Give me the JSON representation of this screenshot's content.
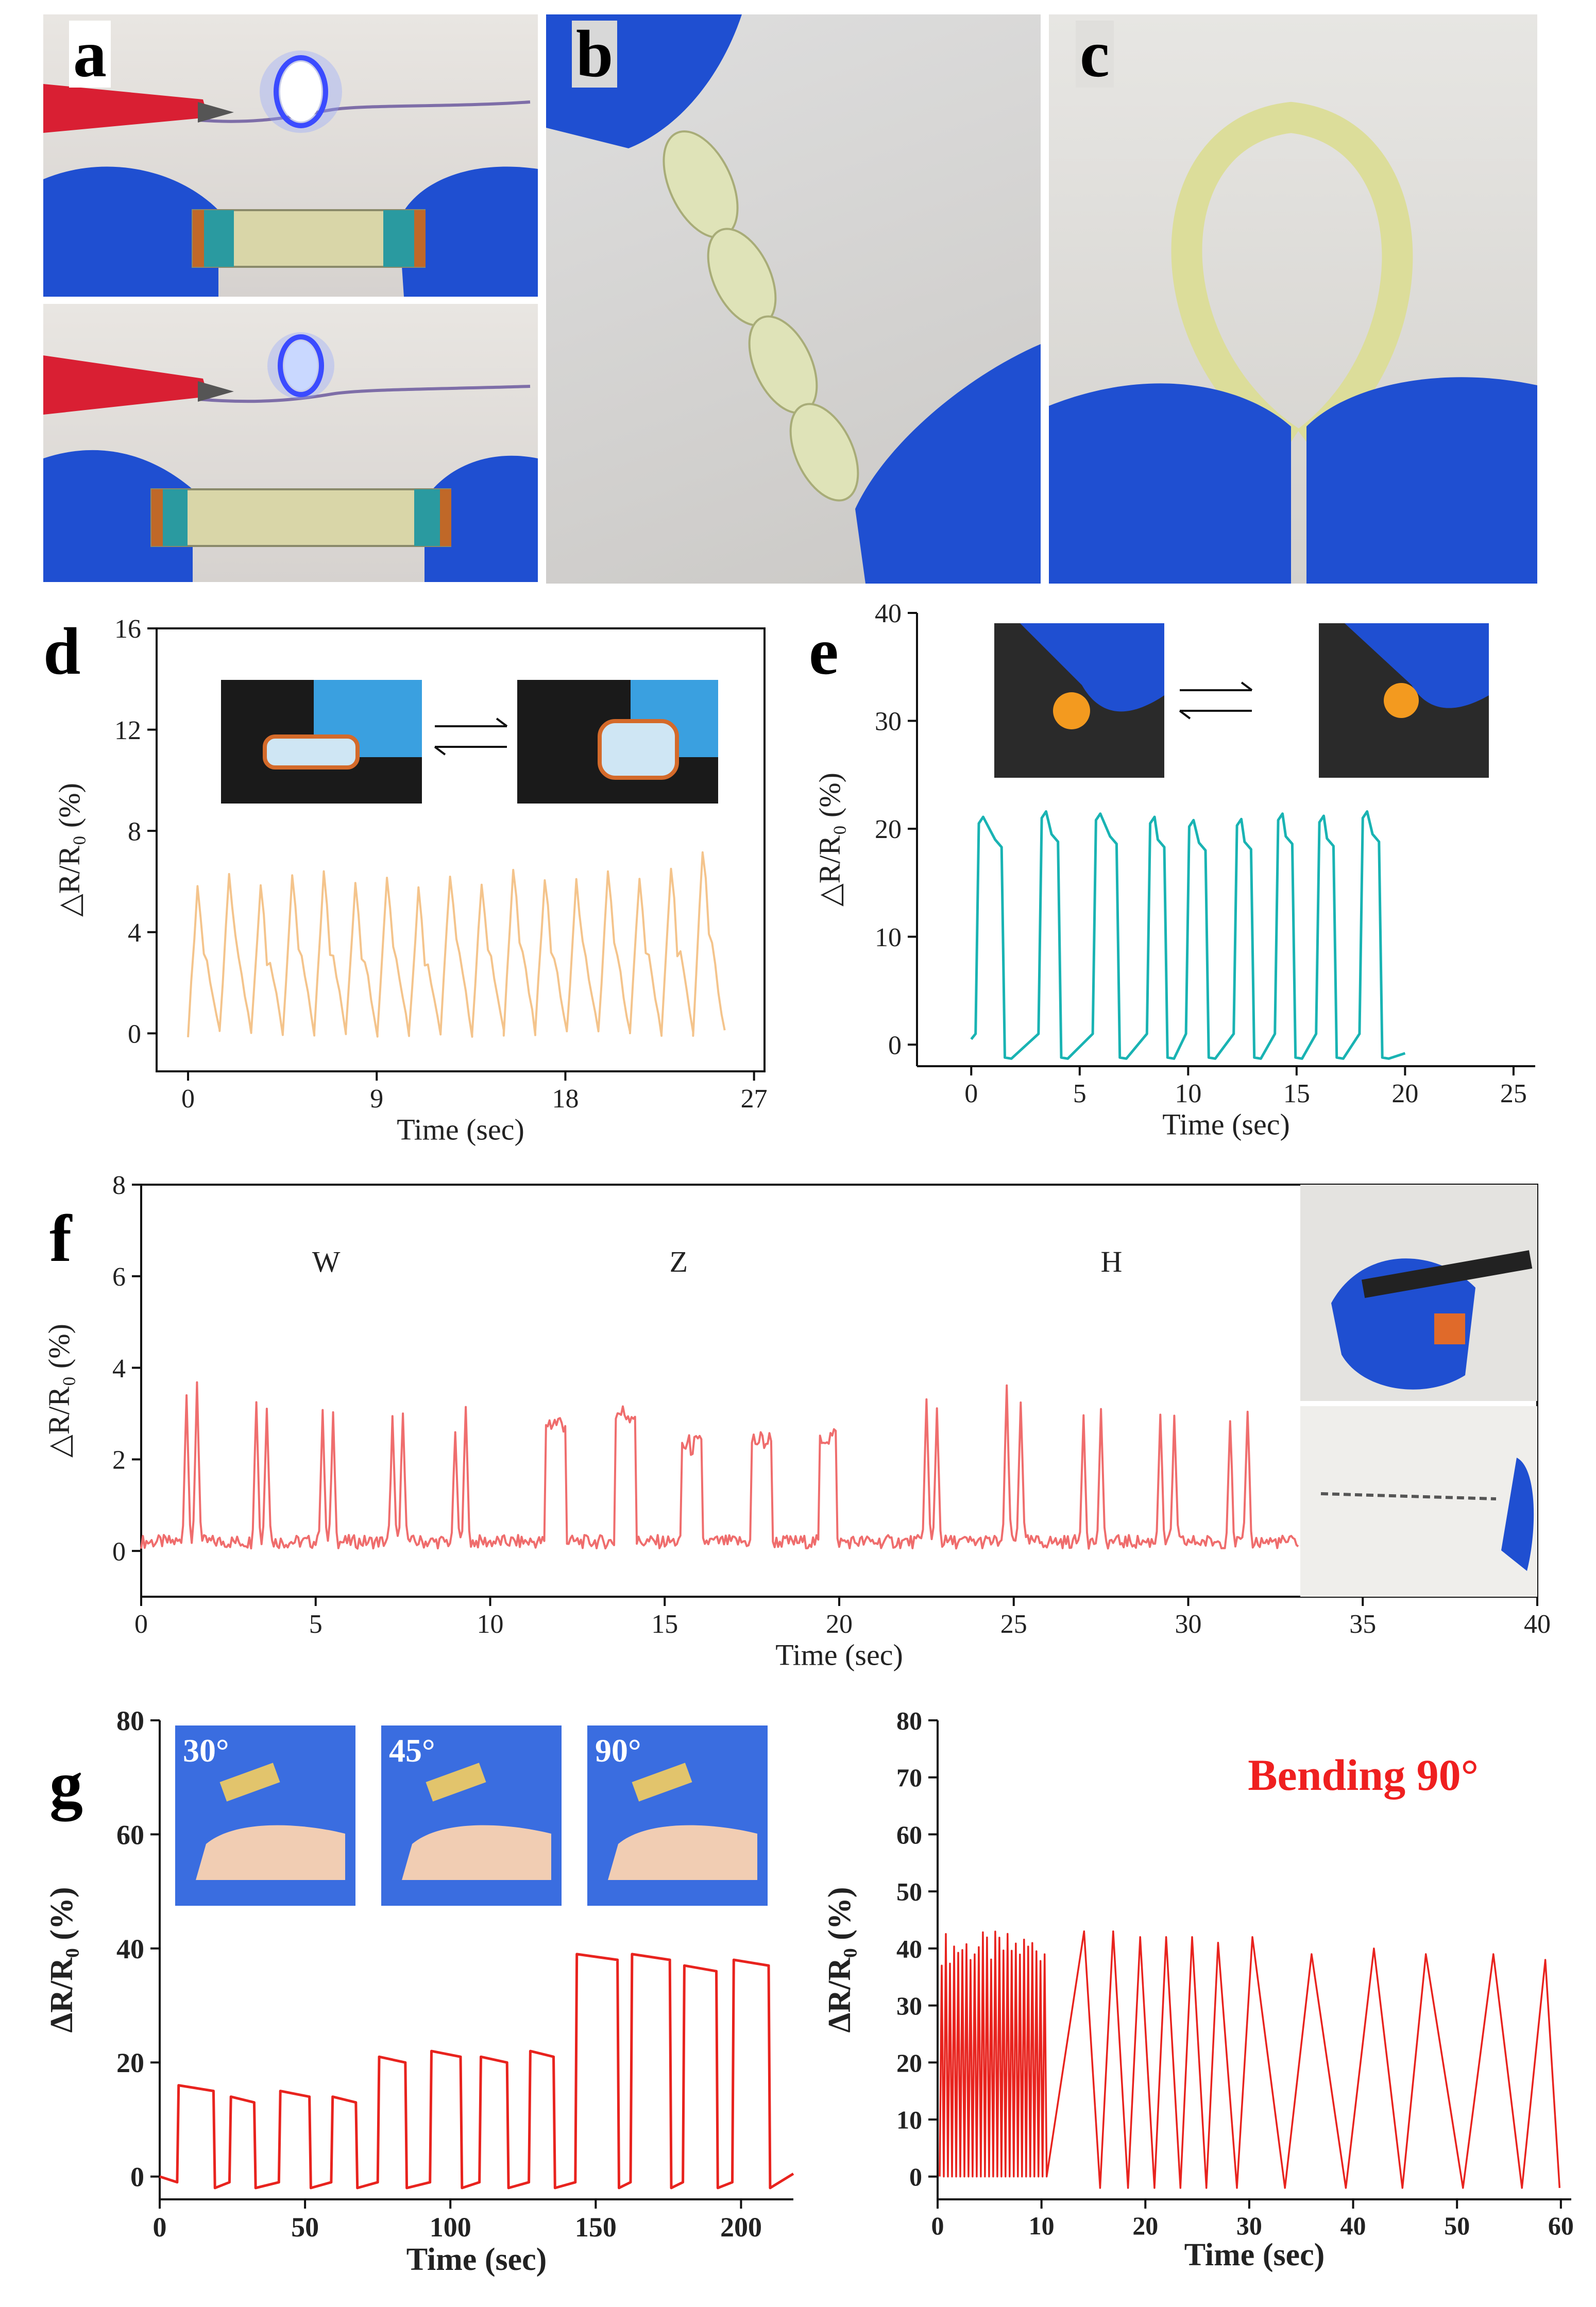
{
  "panels": {
    "a": "a",
    "b": "b",
    "c": "c",
    "d": "d",
    "e": "e",
    "f": "f",
    "g": "g"
  },
  "colors": {
    "d_series": "#f4c48c",
    "e_series": "#19b3b3",
    "f_series": "#ef6d6d",
    "g_series": "#e8231e",
    "bending_text": "#ef1f1f",
    "glove": "#1f4fd1",
    "clip": "#d91f33",
    "led": "#5a6cff"
  },
  "icons": [
    "blue-glove-icon",
    "red-alligator-clip-icon",
    "led-icon",
    "gel-strip-icon",
    "orange-ball-icon",
    "finger-icon",
    "pen-icon",
    "keyboard-icon"
  ],
  "chart_data": [
    {
      "panel": "d",
      "type": "line",
      "ylabel": "△R/R₀ (%)",
      "xlabel": "Time (sec)",
      "xticks": [
        "0",
        "9",
        "18",
        "27"
      ],
      "yticks": [
        "0",
        "4",
        "8",
        "12",
        "16"
      ],
      "xlim": [
        -1.5,
        27.5
      ],
      "ylim": [
        -1.5,
        16
      ],
      "peaks": {
        "count": 17,
        "x_start": 0,
        "x_end": 25.6,
        "heights": [
          5.8,
          6.2,
          5.9,
          6.1,
          6.4,
          6.0,
          6.2,
          5.7,
          6.3,
          6.0,
          6.6,
          6.2,
          6.0,
          6.3,
          6.1,
          6.5,
          7.2
        ]
      },
      "series": [
        {
          "color": "#f4c48c"
        }
      ]
    },
    {
      "panel": "e",
      "type": "line",
      "ylabel": "△R/R₀ (%)",
      "xlabel": "Time (sec)",
      "xticks": [
        "0",
        "5",
        "10",
        "15",
        "20",
        "25"
      ],
      "yticks": [
        "0",
        "10",
        "20",
        "30",
        "40"
      ],
      "xlim": [
        -2.5,
        26
      ],
      "ylim": [
        -2,
        40
      ],
      "pulses": [
        {
          "start": 0.2,
          "end": 1.4,
          "high": 20.5
        },
        {
          "start": 3.1,
          "end": 4.0,
          "high": 21.0
        },
        {
          "start": 5.6,
          "end": 6.7,
          "high": 20.8
        },
        {
          "start": 8.1,
          "end": 8.9,
          "high": 20.5
        },
        {
          "start": 9.9,
          "end": 10.8,
          "high": 20.2
        },
        {
          "start": 12.1,
          "end": 12.9,
          "high": 20.3
        },
        {
          "start": 14.0,
          "end": 14.8,
          "high": 20.8
        },
        {
          "start": 15.9,
          "end": 16.7,
          "high": 20.6
        },
        {
          "start": 17.9,
          "end": 18.8,
          "high": 21.0
        }
      ],
      "series": [
        {
          "color": "#19b3b3"
        }
      ]
    },
    {
      "panel": "f",
      "type": "line",
      "ylabel": "△R/R₀ (%)",
      "xlabel": "Time (sec)",
      "xticks": [
        "0",
        "5",
        "10",
        "15",
        "20",
        "25",
        "30",
        "35",
        "40"
      ],
      "yticks": [
        "0",
        "2",
        "4",
        "6",
        "8"
      ],
      "xlim": [
        0,
        40
      ],
      "ylim": [
        -1,
        8
      ],
      "annotations": [
        {
          "text": "W",
          "x": 5.3,
          "y": 6.1
        },
        {
          "text": "Z",
          "x": 15.4,
          "y": 6.1
        },
        {
          "text": "H",
          "x": 27.8,
          "y": 6.1
        }
      ],
      "bursts": [
        {
          "x": 1.3,
          "h": 3.5
        },
        {
          "x": 1.6,
          "h": 3.7
        },
        {
          "x": 3.3,
          "h": 3.3
        },
        {
          "x": 3.6,
          "h": 3.2
        },
        {
          "x": 5.2,
          "h": 3.0
        },
        {
          "x": 5.5,
          "h": 3.0
        },
        {
          "x": 7.2,
          "h": 2.9
        },
        {
          "x": 7.5,
          "h": 3.1
        },
        {
          "x": 9.0,
          "h": 2.6
        },
        {
          "x": 9.3,
          "h": 3.1
        },
        {
          "x": 11.9,
          "h": 3.2,
          "w": 0.6
        },
        {
          "x": 13.9,
          "h": 3.4,
          "w": 0.6
        },
        {
          "x": 15.8,
          "h": 2.7,
          "w": 0.6
        },
        {
          "x": 17.8,
          "h": 2.8,
          "w": 0.6
        },
        {
          "x": 19.7,
          "h": 2.9,
          "w": 0.5
        },
        {
          "x": 22.5,
          "h": 3.3
        },
        {
          "x": 22.8,
          "h": 3.1
        },
        {
          "x": 24.8,
          "h": 3.6
        },
        {
          "x": 25.2,
          "h": 3.3
        },
        {
          "x": 27.0,
          "h": 3.0
        },
        {
          "x": 27.5,
          "h": 3.0
        },
        {
          "x": 29.2,
          "h": 3.0
        },
        {
          "x": 29.6,
          "h": 2.9
        },
        {
          "x": 31.2,
          "h": 2.9
        },
        {
          "x": 31.7,
          "h": 3.1
        }
      ],
      "x_end": 33.2,
      "series": [
        {
          "color": "#ef6d6d"
        }
      ]
    },
    {
      "panel": "g-left",
      "type": "line",
      "ylabel": "ΔR/R₀ (%)",
      "xlabel": "Time (sec)",
      "xticks": [
        "0",
        "50",
        "100",
        "150",
        "200"
      ],
      "yticks": [
        "0",
        "20",
        "40",
        "60",
        "80"
      ],
      "xlim": [
        0,
        218
      ],
      "ylim": [
        -4,
        80
      ],
      "inset_labels": [
        "30°",
        "45°",
        "90°"
      ],
      "pulses": [
        {
          "start": 6,
          "end": 19,
          "high": 16
        },
        {
          "start": 24,
          "end": 33,
          "high": 14
        },
        {
          "start": 41,
          "end": 52,
          "high": 15
        },
        {
          "start": 59,
          "end": 68,
          "high": 14
        },
        {
          "start": 75,
          "end": 85,
          "high": 21
        },
        {
          "start": 93,
          "end": 104,
          "high": 22
        },
        {
          "start": 110,
          "end": 120,
          "high": 21
        },
        {
          "start": 127,
          "end": 136,
          "high": 22
        },
        {
          "start": 143,
          "end": 158,
          "high": 39
        },
        {
          "start": 162,
          "end": 176,
          "high": 39
        },
        {
          "start": 180,
          "end": 192,
          "high": 37
        },
        {
          "start": 197,
          "end": 210,
          "high": 38
        }
      ],
      "series": [
        {
          "color": "#e8231e"
        }
      ]
    },
    {
      "panel": "g-right",
      "type": "line",
      "title": "Bending 90°",
      "ylabel": "ΔR/R₀ (%)",
      "xlabel": "Time (sec)",
      "xticks": [
        "0",
        "10",
        "20",
        "30",
        "40",
        "50",
        "60"
      ],
      "yticks": [
        "0",
        "10",
        "20",
        "30",
        "40",
        "50",
        "60",
        "70",
        "80"
      ],
      "xlim": [
        0,
        61
      ],
      "ylim": [
        -4,
        80
      ],
      "fast_cycles": {
        "start": 0.2,
        "end": 10.5,
        "count": 26,
        "high": 40
      },
      "slow_peaks": [
        14.1,
        16.9,
        19.5,
        22.0,
        24.5,
        27.0,
        30.3,
        36.0,
        42.0,
        47.0,
        53.5,
        58.5
      ],
      "slow_heights": [
        43,
        43,
        42,
        42,
        42,
        41,
        42,
        39,
        40,
        39,
        39,
        38
      ],
      "series": [
        {
          "color": "#e8231e"
        }
      ]
    }
  ]
}
